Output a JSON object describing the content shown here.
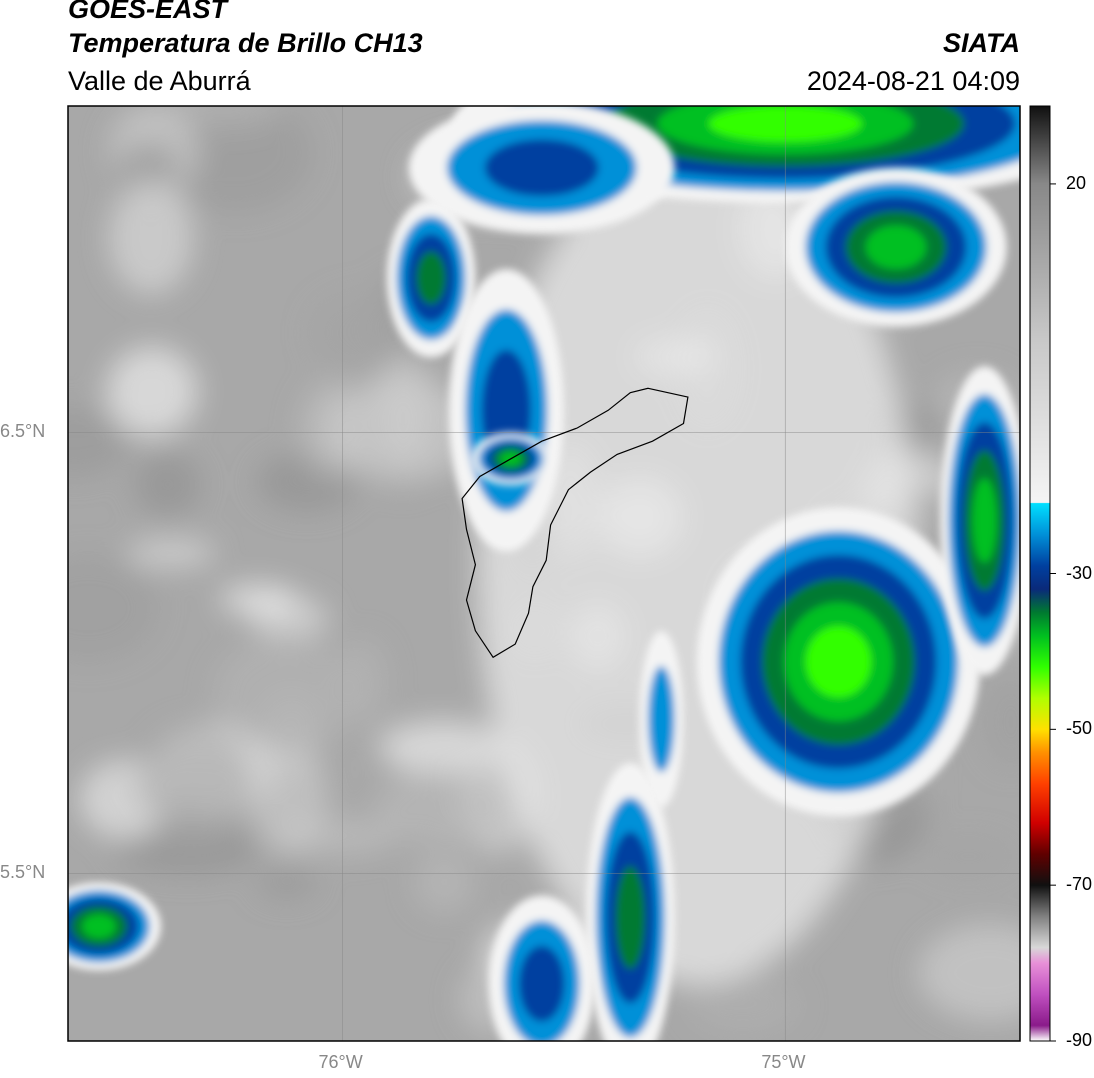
{
  "header": {
    "satellite": "GOES-EAST",
    "product": "Temperatura de Brillo CH13",
    "region": "Valle de Aburrá",
    "organization": "SIATA",
    "timestamp": "2024-08-21 04:09"
  },
  "map": {
    "lon_range": [
      -76.62,
      -74.47
    ],
    "lat_range": [
      5.12,
      7.24
    ],
    "x_ticks": [
      {
        "value": -76,
        "label": "76°W"
      },
      {
        "value": -75,
        "label": "75°W"
      }
    ],
    "y_ticks": [
      {
        "value": 6.5,
        "label": "6.5°N"
      },
      {
        "value": 5.5,
        "label": "5.5°N"
      }
    ],
    "gridlines": true
  },
  "colorbar": {
    "min": -90,
    "max": 30,
    "ticks": [
      {
        "value": 20,
        "label": "20"
      },
      {
        "value": -30,
        "label": "-30"
      },
      {
        "value": -50,
        "label": "-50"
      },
      {
        "value": -70,
        "label": "-70"
      },
      {
        "value": -90,
        "label": "-90"
      }
    ],
    "stops": [
      {
        "value": -90,
        "color": "#ffffff"
      },
      {
        "value": -88,
        "color": "#8a1a8a"
      },
      {
        "value": -84,
        "color": "#c050c0"
      },
      {
        "value": -80,
        "color": "#e890d8"
      },
      {
        "value": -78,
        "color": "#d8d8d8"
      },
      {
        "value": -74,
        "color": "#808080"
      },
      {
        "value": -70,
        "color": "#101010"
      },
      {
        "value": -66,
        "color": "#600000"
      },
      {
        "value": -62,
        "color": "#d00000"
      },
      {
        "value": -57,
        "color": "#ff4000"
      },
      {
        "value": -53,
        "color": "#ff9000"
      },
      {
        "value": -50,
        "color": "#ffe000"
      },
      {
        "value": -46,
        "color": "#b0ff00"
      },
      {
        "value": -42,
        "color": "#30ff00"
      },
      {
        "value": -38,
        "color": "#00c020"
      },
      {
        "value": -35,
        "color": "#007a30"
      },
      {
        "value": -32,
        "color": "#0a2a7a"
      },
      {
        "value": -29,
        "color": "#0040a0"
      },
      {
        "value": -25,
        "color": "#0090d8"
      },
      {
        "value": -21,
        "color": "#00e0ff"
      },
      {
        "value": -20.9,
        "color": "#f4f4f4"
      },
      {
        "value": 0,
        "color": "#c8c8c8"
      },
      {
        "value": 20,
        "color": "#888888"
      },
      {
        "value": 30,
        "color": "#101010"
      }
    ]
  },
  "clouds": [
    {
      "name": "cell-east-core",
      "lon": -74.84,
      "lat": 5.97,
      "rx": 0.19,
      "ry": 0.21,
      "temp": -64
    },
    {
      "name": "cell-east-anvil",
      "lon": -74.88,
      "lat": 5.98,
      "rx": 0.32,
      "ry": 0.35,
      "temp": -42
    },
    {
      "name": "band-north",
      "lon": -75.0,
      "lat": 7.2,
      "rx": 0.75,
      "ry": 0.18,
      "temp": -40
    },
    {
      "name": "band-north-ext",
      "lon": -74.75,
      "lat": 6.92,
      "rx": 0.25,
      "ry": 0.18,
      "temp": -36
    },
    {
      "name": "band-north-west",
      "lon": -75.55,
      "lat": 7.1,
      "rx": 0.3,
      "ry": 0.15,
      "temp": -30
    },
    {
      "name": "arm-west",
      "lon": -75.8,
      "lat": 6.85,
      "rx": 0.1,
      "ry": 0.18,
      "temp": -34
    },
    {
      "name": "arm-west-low",
      "lon": -75.63,
      "lat": 6.55,
      "rx": 0.13,
      "ry": 0.32,
      "temp": -28
    },
    {
      "name": "cell-aburra-north",
      "lon": -75.62,
      "lat": 6.44,
      "rx": 0.09,
      "ry": 0.06,
      "temp": -38
    },
    {
      "name": "east-edge-band",
      "lon": -74.55,
      "lat": 6.3,
      "rx": 0.1,
      "ry": 0.35,
      "temp": -36
    },
    {
      "name": "south-band-1",
      "lon": -75.35,
      "lat": 5.4,
      "rx": 0.1,
      "ry": 0.35,
      "temp": -34
    },
    {
      "name": "south-band-2",
      "lon": -75.55,
      "lat": 5.25,
      "rx": 0.12,
      "ry": 0.2,
      "temp": -30
    },
    {
      "name": "southwest-corner",
      "lon": -76.55,
      "lat": 5.38,
      "rx": 0.14,
      "ry": 0.1,
      "temp": -36
    },
    {
      "name": "mid-strip",
      "lon": -75.28,
      "lat": 5.85,
      "rx": 0.05,
      "ry": 0.2,
      "temp": -26
    }
  ],
  "valley_outline": [
    [
      -75.31,
      6.6
    ],
    [
      -75.22,
      6.58
    ],
    [
      -75.23,
      6.52
    ],
    [
      -75.3,
      6.48
    ],
    [
      -75.38,
      6.45
    ],
    [
      -75.44,
      6.41
    ],
    [
      -75.49,
      6.37
    ],
    [
      -75.53,
      6.29
    ],
    [
      -75.54,
      6.21
    ],
    [
      -75.57,
      6.15
    ],
    [
      -75.58,
      6.09
    ],
    [
      -75.61,
      6.02
    ],
    [
      -75.66,
      5.99
    ],
    [
      -75.7,
      6.05
    ],
    [
      -75.72,
      6.12
    ],
    [
      -75.7,
      6.2
    ],
    [
      -75.72,
      6.28
    ],
    [
      -75.73,
      6.35
    ],
    [
      -75.69,
      6.4
    ],
    [
      -75.62,
      6.44
    ],
    [
      -75.55,
      6.48
    ],
    [
      -75.47,
      6.51
    ],
    [
      -75.4,
      6.55
    ],
    [
      -75.35,
      6.59
    ]
  ]
}
